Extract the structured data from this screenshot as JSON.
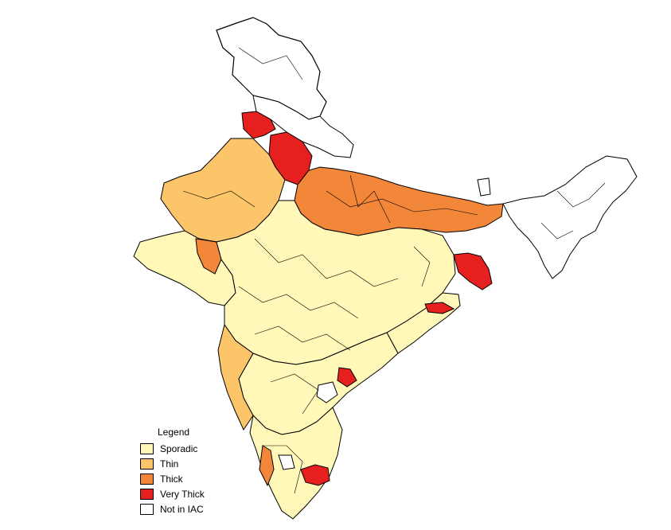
{
  "legend": {
    "title": "Legend",
    "items": [
      {
        "label": "Sporadic",
        "color": "#FFF8B8",
        "key": "sporadic"
      },
      {
        "label": "Thin",
        "color": "#FCC56A",
        "key": "thin"
      },
      {
        "label": "Thick",
        "color": "#F2873A",
        "key": "thick"
      },
      {
        "label": "Very Thick",
        "color": "#E5201E",
        "key": "very-thick"
      },
      {
        "label": "Not in IAC",
        "color": "#FFFFFF",
        "key": "not-in-iac"
      }
    ]
  },
  "colors": {
    "sporadic": "#FFF8B8",
    "thin": "#FCC56A",
    "thick": "#F2873A",
    "very_thick": "#E5201E",
    "not_in_iac": "#FFFFFF",
    "border": "#000000"
  }
}
